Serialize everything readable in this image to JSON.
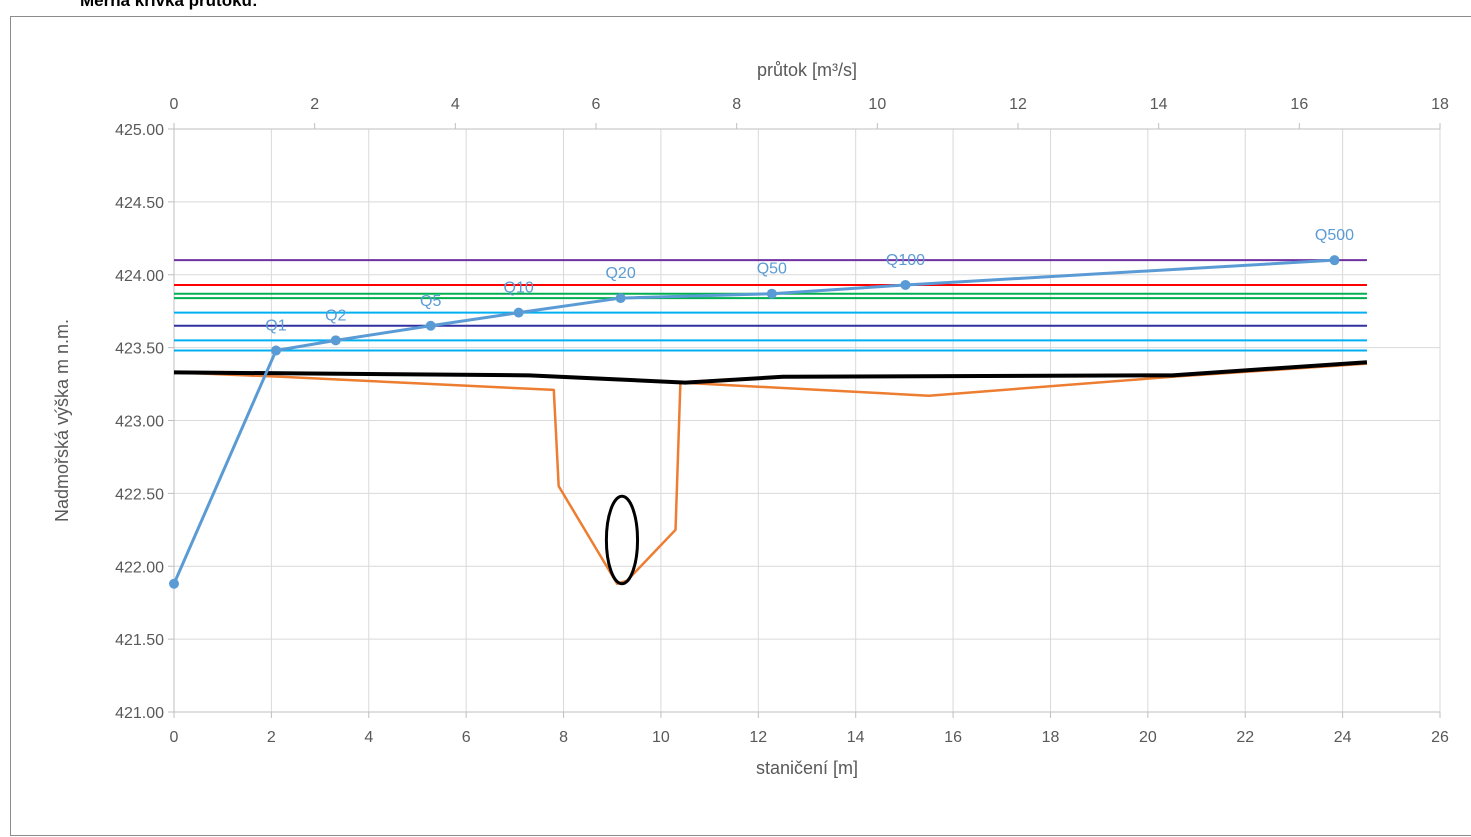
{
  "page_title": "Měrná křivka průtoku:",
  "chart_data": {
    "type": "line",
    "xlabel": "staničení [m]",
    "ylabel": "Nadmořská výška m n.m.",
    "x2label": "průtok [m³/s]",
    "xlim": [
      0,
      26
    ],
    "x2lim": [
      0,
      18
    ],
    "ylim": [
      421.0,
      425.0
    ],
    "xticks": [
      "0",
      "2",
      "4",
      "6",
      "8",
      "10",
      "12",
      "14",
      "16",
      "18",
      "20",
      "22",
      "24",
      "26"
    ],
    "x2ticks": [
      "0",
      "2",
      "4",
      "6",
      "8",
      "10",
      "12",
      "14",
      "16",
      "18"
    ],
    "yticks": [
      "421.00",
      "421.50",
      "422.00",
      "422.50",
      "423.00",
      "423.50",
      "424.00",
      "424.50",
      "425.00"
    ],
    "grid": true,
    "colors": {
      "rating_curve": "#5b9bd5",
      "cross_section": "#ed7d31",
      "terrain": "#000000",
      "marker_ellipse": "#000000"
    },
    "water_levels": [
      {
        "label": "Q500",
        "y": 424.1,
        "color": "#7030a0"
      },
      {
        "label": "Q100",
        "y": 423.93,
        "color": "#ff0000"
      },
      {
        "label": "Q50",
        "y": 423.87,
        "color": "#00b050"
      },
      {
        "label": "Q20",
        "y": 423.84,
        "color": "#00b050"
      },
      {
        "label": "Q10",
        "y": 423.74,
        "color": "#00b0f0"
      },
      {
        "label": "Q5",
        "y": 423.65,
        "color": "#3030a0"
      },
      {
        "label": "Q2",
        "y": 423.55,
        "color": "#00b0f0"
      },
      {
        "label": "Q1",
        "y": 423.48,
        "color": "#00b0f0"
      }
    ],
    "level_line_x_range": [
      0,
      24.5
    ],
    "rating_curve": {
      "axis": "secondary_x",
      "points": [
        {
          "label": "",
          "q": 0.0,
          "y": 421.88
        },
        {
          "label": "Q1",
          "q": 1.45,
          "y": 423.48
        },
        {
          "label": "Q2",
          "q": 2.3,
          "y": 423.55
        },
        {
          "label": "Q5",
          "q": 3.65,
          "y": 423.65
        },
        {
          "label": "Q10",
          "q": 4.9,
          "y": 423.74
        },
        {
          "label": "Q20",
          "q": 6.35,
          "y": 423.84
        },
        {
          "label": "Q50",
          "q": 8.5,
          "y": 423.87
        },
        {
          "label": "Q100",
          "q": 10.4,
          "y": 423.93
        },
        {
          "label": "Q500",
          "q": 16.5,
          "y": 424.1
        }
      ]
    },
    "cross_section": {
      "axis": "primary_x",
      "points": [
        [
          0,
          423.33
        ],
        [
          2.2,
          423.3
        ],
        [
          7.8,
          423.21
        ],
        [
          7.9,
          422.55
        ],
        [
          9.1,
          421.88
        ],
        [
          9.3,
          421.9
        ],
        [
          10.3,
          422.25
        ],
        [
          10.4,
          423.26
        ],
        [
          15.5,
          423.17
        ],
        [
          20.5,
          423.3
        ],
        [
          24.5,
          423.39
        ]
      ]
    },
    "terrain": {
      "axis": "primary_x",
      "points": [
        [
          0,
          423.33
        ],
        [
          7.3,
          423.31
        ],
        [
          10.5,
          423.26
        ],
        [
          12.5,
          423.3
        ],
        [
          20.5,
          423.31
        ],
        [
          24.5,
          423.4
        ]
      ]
    },
    "marker_ellipse": {
      "x": 9.2,
      "y": 422.18,
      "rx": 0.32,
      "ry": 0.3
    }
  }
}
